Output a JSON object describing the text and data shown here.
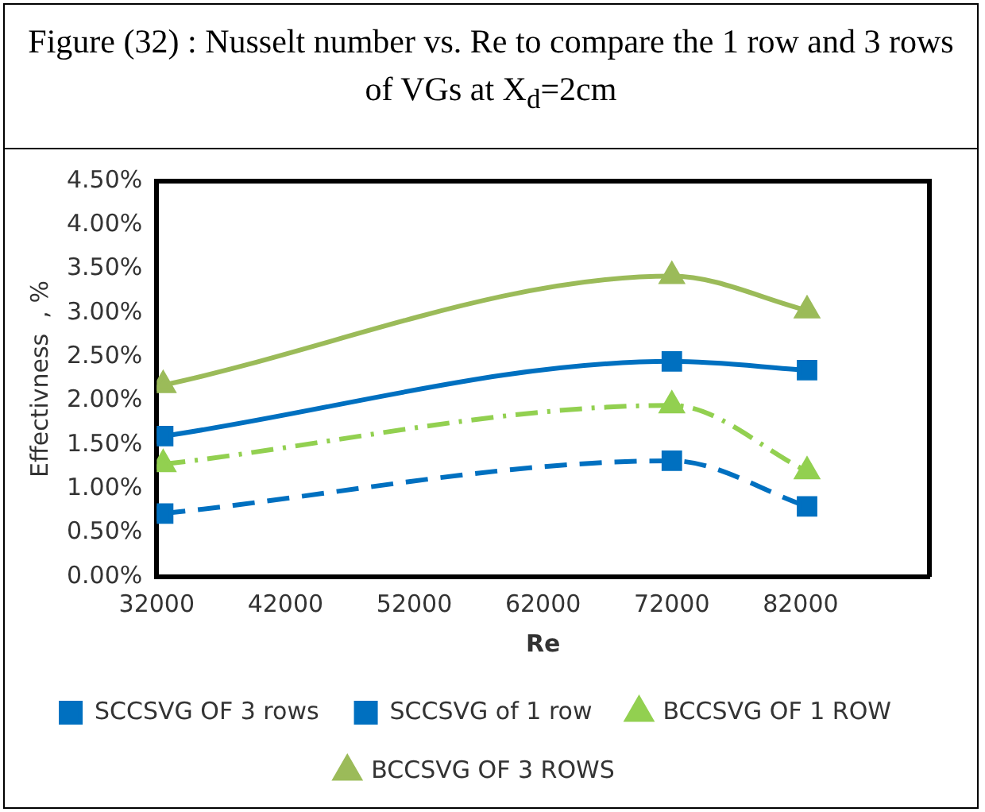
{
  "chart_data": {
    "type": "line",
    "title": "Figure (32) : Nusselt number vs. Re to compare the 1 row and 3 rows of  VGs at X$_{d}$=2cm",
    "xlabel": "Re",
    "ylabel": "Effectivness  , %",
    "xlim": [
      32000,
      92000
    ],
    "xticks": [
      32000,
      42000,
      52000,
      62000,
      72000,
      82000
    ],
    "ylim": [
      0,
      4.5
    ],
    "yticks": [
      {
        "value": 0,
        "label": "0.00%"
      },
      {
        "value": 0.5,
        "label": "0.50%"
      },
      {
        "value": 1,
        "label": "1.00%"
      },
      {
        "value": 1.5,
        "label": "1.50%"
      },
      {
        "value": 2,
        "label": "2.00%"
      },
      {
        "value": 2.5,
        "label": "2.50%"
      },
      {
        "value": 3,
        "label": "3.00%"
      },
      {
        "value": 3.5,
        "label": "3.50%"
      },
      {
        "value": 4,
        "label": "4.00%"
      },
      {
        "value": 4.5,
        "label": "4.50%"
      }
    ],
    "grid": false,
    "legend": "bottom",
    "series": [
      {
        "name": "SCCSVG OF 3 rows",
        "color": "#0070c0",
        "x": [
          32500,
          72000,
          82500
        ],
        "values": [
          1.6,
          2.45,
          2.35
        ],
        "marker": "square",
        "line_style": "solid"
      },
      {
        "name": "SCCSVG of 1 row",
        "color": "#0070c0",
        "x": [
          32500,
          72000,
          82500
        ],
        "values": [
          0.72,
          1.32,
          0.8
        ],
        "marker": "square",
        "line_style": "dashed"
      },
      {
        "name": "BCCSVG OF 1 ROW",
        "color": "#92d050",
        "x": [
          32500,
          72000,
          82500
        ],
        "values": [
          1.28,
          1.95,
          1.2
        ],
        "marker": "triangle",
        "line_style": "dotted"
      },
      {
        "name": "BCCSVG OF 3 ROWS",
        "color": "#9bbb59",
        "x": [
          32500,
          72000,
          82500
        ],
        "values": [
          2.18,
          3.42,
          3.03
        ],
        "marker": "triangle",
        "line_style": "solid"
      }
    ]
  }
}
